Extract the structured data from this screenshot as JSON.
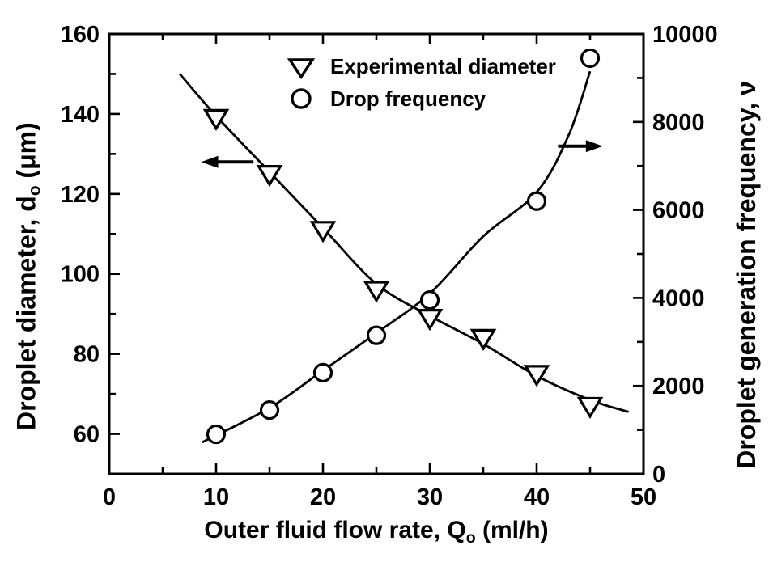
{
  "figure": {
    "background_color": "#ffffff",
    "axis_color": "#000000"
  },
  "legend": {
    "items": [
      {
        "marker": "triangle-down",
        "label": "Experimental diameter"
      },
      {
        "marker": "circle",
        "label": "Drop frequency"
      }
    ]
  },
  "axes": {
    "x": {
      "title_pre": "Outer fluid flow rate, Q",
      "title_sub": "o",
      "title_post": " (ml/h)"
    },
    "y_left": {
      "title_pre": "Droplet diameter, d",
      "title_sub": "o",
      "title_post": " (μm)"
    },
    "y_right": {
      "title": "Droplet generation frequency, ν"
    }
  },
  "chart_data": {
    "type": "scatter",
    "title": "",
    "xlabel": "Outer fluid flow rate, Qo (ml/h)",
    "ylabel_left": "Droplet diameter, do (μm)",
    "ylabel_right": "Droplet generation frequency, ν",
    "grid": false,
    "legend_position": "top-center-inside",
    "x_range": [
      0,
      50
    ],
    "y_left_range": [
      50,
      160
    ],
    "y_right_range": [
      0,
      10000
    ],
    "x_major_ticks": [
      0,
      10,
      20,
      30,
      40,
      50
    ],
    "x_minor_ticks": [
      5,
      15,
      25,
      35,
      45
    ],
    "y_left_major_ticks": [
      60,
      80,
      100,
      120,
      140,
      160
    ],
    "y_left_minor_ticks": [
      70,
      90,
      110,
      130,
      150
    ],
    "y_right_major_ticks": [
      0,
      2000,
      4000,
      6000,
      8000,
      10000
    ],
    "y_right_minor_ticks": [
      1000,
      3000,
      5000,
      7000,
      9000
    ],
    "series": [
      {
        "name": "Experimental diameter",
        "axis": "left",
        "marker": "triangle-down",
        "x": [
          10,
          15,
          20,
          25,
          30,
          35,
          40,
          45
        ],
        "y": [
          139,
          125,
          111,
          96,
          89,
          84,
          75,
          67
        ]
      },
      {
        "name": "Drop frequency",
        "axis": "right",
        "marker": "circle",
        "x": [
          10,
          15,
          20,
          25,
          30,
          40,
          45
        ],
        "y": [
          900,
          1450,
          2300,
          3150,
          3950,
          6200,
          9450
        ]
      }
    ],
    "fit_curves": [
      {
        "name": "diameter-fit",
        "axis": "left",
        "points": [
          [
            6.6,
            150
          ],
          [
            10,
            139.5
          ],
          [
            15,
            125.5
          ],
          [
            20,
            111.5
          ],
          [
            25,
            97.5
          ],
          [
            30,
            89.5
          ],
          [
            35,
            82.5
          ],
          [
            40,
            74.5
          ],
          [
            45,
            68.5
          ],
          [
            48.6,
            65.5
          ]
        ]
      },
      {
        "name": "frequency-fit",
        "axis": "right",
        "points": [
          [
            8.7,
            720
          ],
          [
            15,
            1500
          ],
          [
            20,
            2350
          ],
          [
            25,
            3200
          ],
          [
            30,
            4100
          ],
          [
            35,
            5400
          ],
          [
            40,
            6400
          ],
          [
            43,
            7700
          ],
          [
            45,
            9150
          ]
        ]
      }
    ],
    "annotations": {
      "arrows": [
        {
          "name": "left-axis-arrow",
          "axis": "left",
          "y": 128,
          "x_from": 13.5,
          "x_to": 8.6,
          "direction": "left"
        },
        {
          "name": "right-axis-arrow",
          "axis": "right",
          "y": 7450,
          "x_from": 42.0,
          "x_to": 46.2,
          "direction": "right"
        }
      ]
    }
  }
}
